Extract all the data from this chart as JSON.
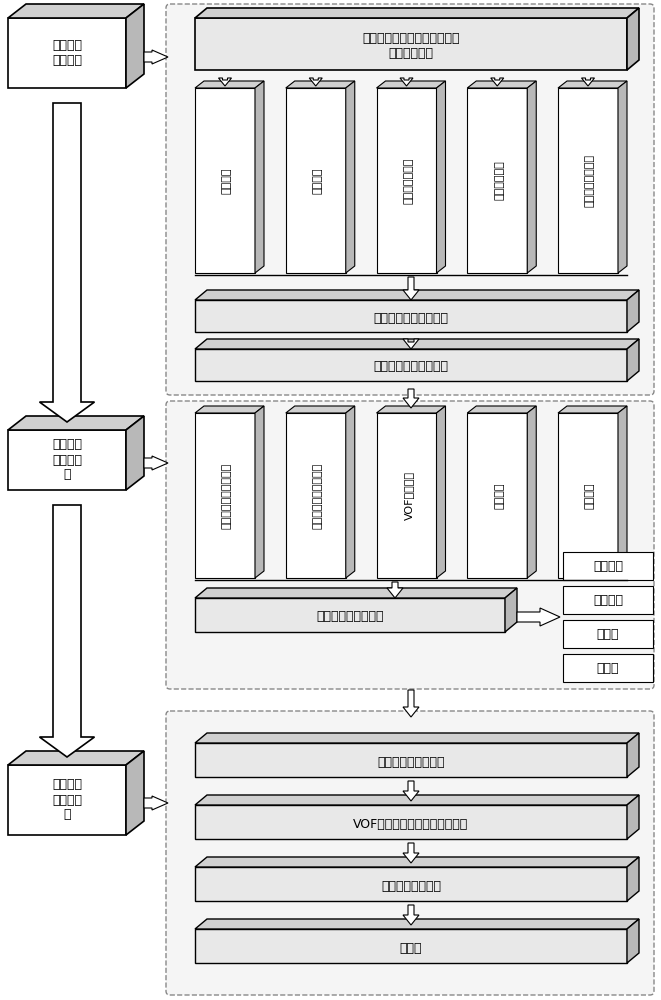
{
  "bg_color": "#ffffff",
  "section1_label": "三维精细\n地质模型",
  "section2_label": "三维渗流\n场数值模\n拟",
  "section3_label": "坝体浸润\n面求解分\n析",
  "top_box_text": "水利枢纽坝区多源地质数据和\n大坝设计资料",
  "col_labels_1": [
    "坝体模型",
    "地层模型",
    "不良地质体模型",
    "渗控结构模型",
    "三维裂隙网络模型"
  ],
  "mid_box1_text": "三维精细地质统一模型",
  "mid_box2_text": "三维渗流计算网格模型",
  "col_labels_2": [
    "三维渗流计算网格模型",
    "三维渗流计算数学模型",
    "VOF数学模型",
    "边界条件",
    "渗透参数"
  ],
  "seepage_box_text": "土石坝枢组区渗流场",
  "right_labels": [
    "水头分布",
    "水力梯度",
    "扬压力",
    "渗漏量"
  ],
  "bottom_boxes": [
    "土石坝枢组区渗流场",
    "VOF法得到水气两相的体积分数",
    "水气两相的交界面",
    "浸润面"
  ],
  "font_size": 9,
  "font_size_col": 8,
  "font_size_small": 9
}
